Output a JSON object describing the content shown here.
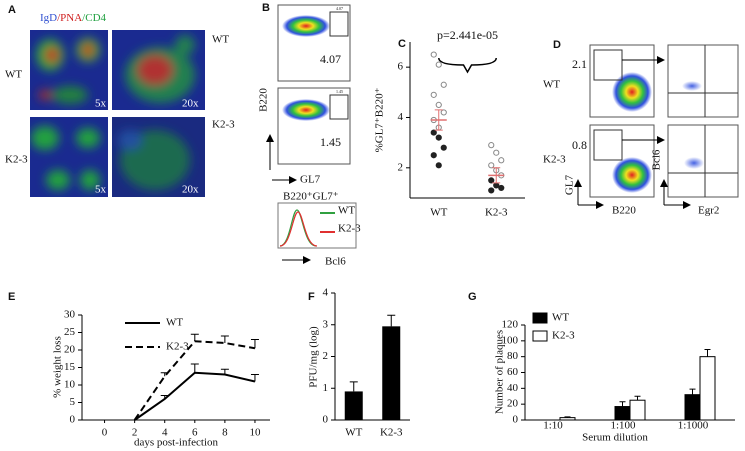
{
  "panels": {
    "A": {
      "label": "A",
      "stain": [
        "IgD",
        "/PNA",
        "/CD4"
      ],
      "rows": [
        "WT",
        "K2-3"
      ],
      "right_rows": [
        "WT",
        "K2-3"
      ],
      "magnifications": [
        "5x",
        "20x"
      ]
    },
    "B": {
      "label": "B",
      "gates": [
        "4.07",
        "1.45"
      ],
      "ylabel": "B220",
      "xlabel": "GL7",
      "hist_title": "B220⁺GL7⁺",
      "legend": [
        "WT",
        "K2-3"
      ],
      "hist_xlabel": "Bcl6"
    },
    "D": {
      "label": "D",
      "gates": [
        "2.1",
        "0.8"
      ],
      "rows": [
        "WT",
        "K2-3"
      ],
      "ylabel": "GL7",
      "xlabel": "B220",
      "ylabel2": "Bcl6",
      "xlabel2": "Egr2"
    }
  },
  "chart_data": [
    {
      "type": "dot",
      "label": "C",
      "title": "p=2.441e-05",
      "ylabel": "%GL7⁺B220⁺",
      "categories": [
        "WT",
        "K2-3"
      ],
      "ylim": [
        0.8,
        7
      ],
      "yticks": [
        2,
        4,
        6
      ],
      "series": [
        {
          "marker": "open",
          "color": "#888888",
          "values": [
            [
              6.5,
              6.1,
              5.3,
              4.9,
              4.5,
              4.2,
              3.9,
              3.6
            ],
            [
              2.9,
              2.6,
              2.3,
              2.1,
              1.9,
              1.7
            ]
          ]
        },
        {
          "marker": "filled",
          "color": "#222222",
          "values": [
            [
              3.4,
              3.2,
              2.8,
              2.5,
              2.1
            ],
            [
              1.5,
              1.3,
              1.2,
              1.1
            ]
          ]
        }
      ],
      "means": [
        3.9,
        1.7
      ],
      "errors": [
        0.4,
        0.3
      ],
      "mean_color": "#e07070"
    },
    {
      "type": "line",
      "label": "E",
      "xlabel": "days post-infection",
      "ylabel": "% weight loss",
      "x": [
        0,
        2,
        4,
        6,
        8,
        10
      ],
      "xlim": [
        -1.5,
        11
      ],
      "xticks": [
        0,
        2,
        4,
        6,
        8,
        10
      ],
      "ylim": [
        0,
        30
      ],
      "yticks": [
        0,
        5,
        10,
        15,
        20,
        25,
        30
      ],
      "series": [
        {
          "name": "WT",
          "color": "#000000",
          "dash": false,
          "values": [
            null,
            0,
            6,
            13.5,
            13,
            11
          ],
          "errors": [
            null,
            0,
            1,
            2.5,
            1.5,
            2
          ]
        },
        {
          "name": "K2-3",
          "color": "#000000",
          "dash": true,
          "values": [
            null,
            0,
            12.5,
            22.5,
            22,
            20.5
          ],
          "errors": [
            null,
            0,
            1,
            2,
            2,
            2.5
          ]
        }
      ]
    },
    {
      "type": "bar",
      "label": "F",
      "ylabel": "PFU/mg (log)",
      "categories": [
        "WT",
        "K2-3"
      ],
      "values": [
        0.9,
        2.95
      ],
      "errors": [
        0.3,
        0.35
      ],
      "color": "#000000",
      "ylim": [
        0,
        4
      ],
      "yticks": [
        0,
        1,
        2,
        3,
        4
      ]
    },
    {
      "type": "groupedbar",
      "label": "G",
      "ylabel": "Number of plaques",
      "xlabel": "Serum dilution",
      "categories": [
        "1:10",
        "1:100",
        "1:1000"
      ],
      "ylim": [
        0,
        120
      ],
      "yticks": [
        0,
        20,
        40,
        60,
        80,
        100,
        120
      ],
      "series": [
        {
          "name": "WT",
          "color": "#000000",
          "values": [
            0,
            17,
            32
          ],
          "errors": [
            0,
            6,
            7
          ]
        },
        {
          "name": "K2-3",
          "color": "#ffffff",
          "values": [
            3,
            25,
            80
          ],
          "errors": [
            1,
            5,
            9
          ]
        }
      ]
    }
  ]
}
